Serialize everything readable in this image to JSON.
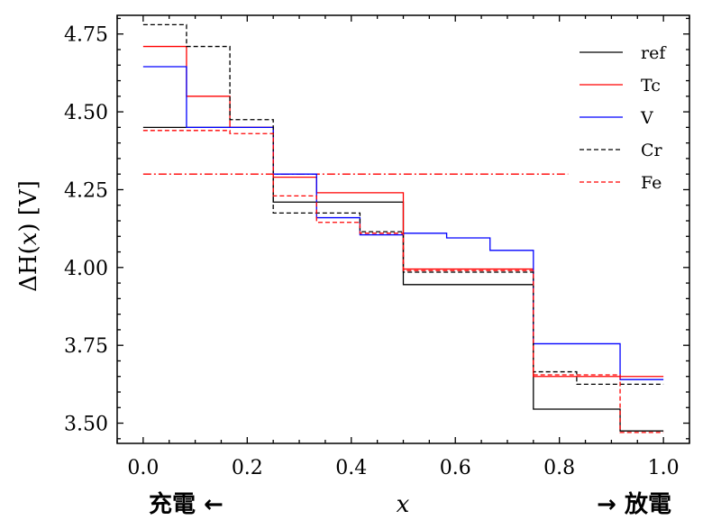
{
  "chart_data": {
    "type": "line",
    "step": "post",
    "xlim": [
      -0.05,
      1.05
    ],
    "ylim": [
      3.435,
      4.81
    ],
    "x_ticks": [
      0.0,
      0.2,
      0.4,
      0.6,
      0.8,
      1.0
    ],
    "x_tick_labels": [
      "0.0",
      "0.2",
      "0.4",
      "0.6",
      "0.8",
      "1.0"
    ],
    "y_ticks": [
      3.5,
      3.75,
      4.0,
      4.25,
      4.5,
      4.75
    ],
    "y_tick_labels": [
      "3.50",
      "3.75",
      "4.00",
      "4.25",
      "4.50",
      "4.75"
    ],
    "xlabel": "x",
    "ylabel_prefix": "ΔH(",
    "ylabel_var": "x",
    "ylabel_suffix": ") [V]",
    "left_annotation": "充電 ←",
    "right_annotation": "→ 放電",
    "legend_position": "top-right",
    "series": [
      {
        "name": "ref",
        "color": "#000000",
        "dash": "solid",
        "x": [
          0.0,
          0.25,
          0.5,
          0.75,
          0.9167,
          1.0
        ],
        "y": [
          4.45,
          4.21,
          3.945,
          3.545,
          3.475,
          3.475
        ]
      },
      {
        "name": "Tc",
        "color": "#ff0000",
        "dash": "solid",
        "x": [
          0.0,
          0.0833,
          0.1667,
          0.25,
          0.3333,
          0.5,
          0.75,
          1.0
        ],
        "y": [
          4.71,
          4.55,
          4.45,
          4.29,
          4.24,
          3.995,
          3.65,
          3.65
        ]
      },
      {
        "name": "V",
        "color": "#0000ff",
        "dash": "solid",
        "x": [
          0.0,
          0.0833,
          0.25,
          0.3333,
          0.4167,
          0.5,
          0.5833,
          0.6667,
          0.75,
          0.9167,
          1.0
        ],
        "y": [
          4.645,
          4.45,
          4.3,
          4.16,
          4.105,
          4.11,
          4.095,
          4.055,
          3.755,
          3.64,
          3.64
        ]
      },
      {
        "name": "Cr",
        "color": "#000000",
        "dash": "dashed",
        "x": [
          0.0,
          0.0833,
          0.1667,
          0.25,
          0.4167,
          0.5,
          0.75,
          0.8333,
          1.0
        ],
        "y": [
          4.78,
          4.71,
          4.475,
          4.175,
          4.115,
          3.985,
          3.665,
          3.625,
          3.625
        ]
      },
      {
        "name": "Fe",
        "color": "#ff0000",
        "dash": "dashed",
        "x": [
          0.0,
          0.1667,
          0.25,
          0.3333,
          0.4167,
          0.5,
          0.75,
          0.9167,
          1.0
        ],
        "y": [
          4.44,
          4.43,
          4.23,
          4.145,
          4.11,
          3.99,
          3.655,
          3.47,
          3.47
        ]
      }
    ],
    "reference_line": {
      "y": 4.3,
      "x": [
        0.0,
        0.8167
      ],
      "color": "#ff0000",
      "dash": "dashdot"
    }
  }
}
